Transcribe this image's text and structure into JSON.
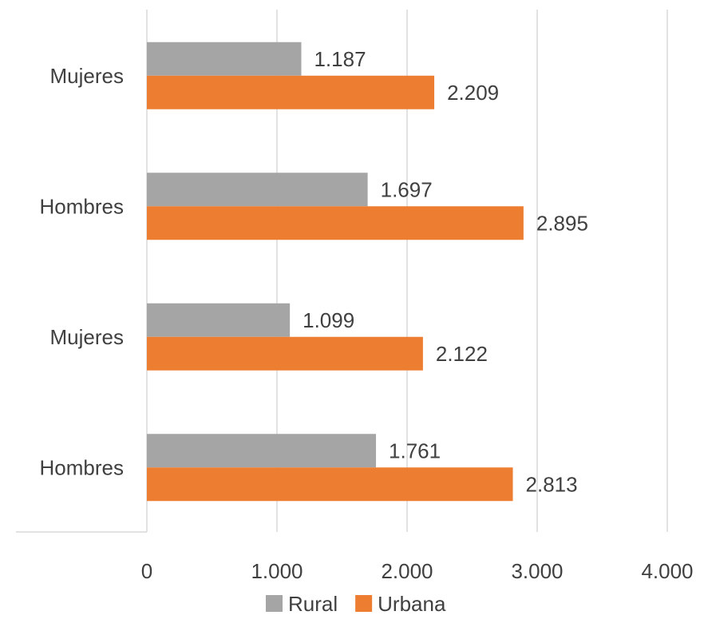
{
  "chart_data": {
    "type": "bar",
    "orientation": "horizontal",
    "categories": [
      "Mujeres",
      "Hombres",
      "Mujeres",
      "Hombres"
    ],
    "series": [
      {
        "name": "Rural",
        "color": "#A5A5A5",
        "values": [
          1187,
          1697,
          1099,
          1761
        ],
        "labels": [
          "1.187",
          "1.697",
          "1.099",
          "1.761"
        ]
      },
      {
        "name": "Urbana",
        "color": "#ED7D31",
        "values": [
          2209,
          2895,
          2122,
          2813
        ],
        "labels": [
          "2.209",
          "2.895",
          "2.122",
          "2.813"
        ]
      }
    ],
    "xlim": [
      0,
      4000
    ],
    "x_ticks": [
      0,
      1000,
      2000,
      3000,
      4000
    ],
    "x_tick_labels": [
      "0",
      "1.000",
      "2.000",
      "3.000",
      "4.000"
    ],
    "grid": true,
    "legend_position": "bottom",
    "title": "",
    "xlabel": "",
    "ylabel": ""
  }
}
